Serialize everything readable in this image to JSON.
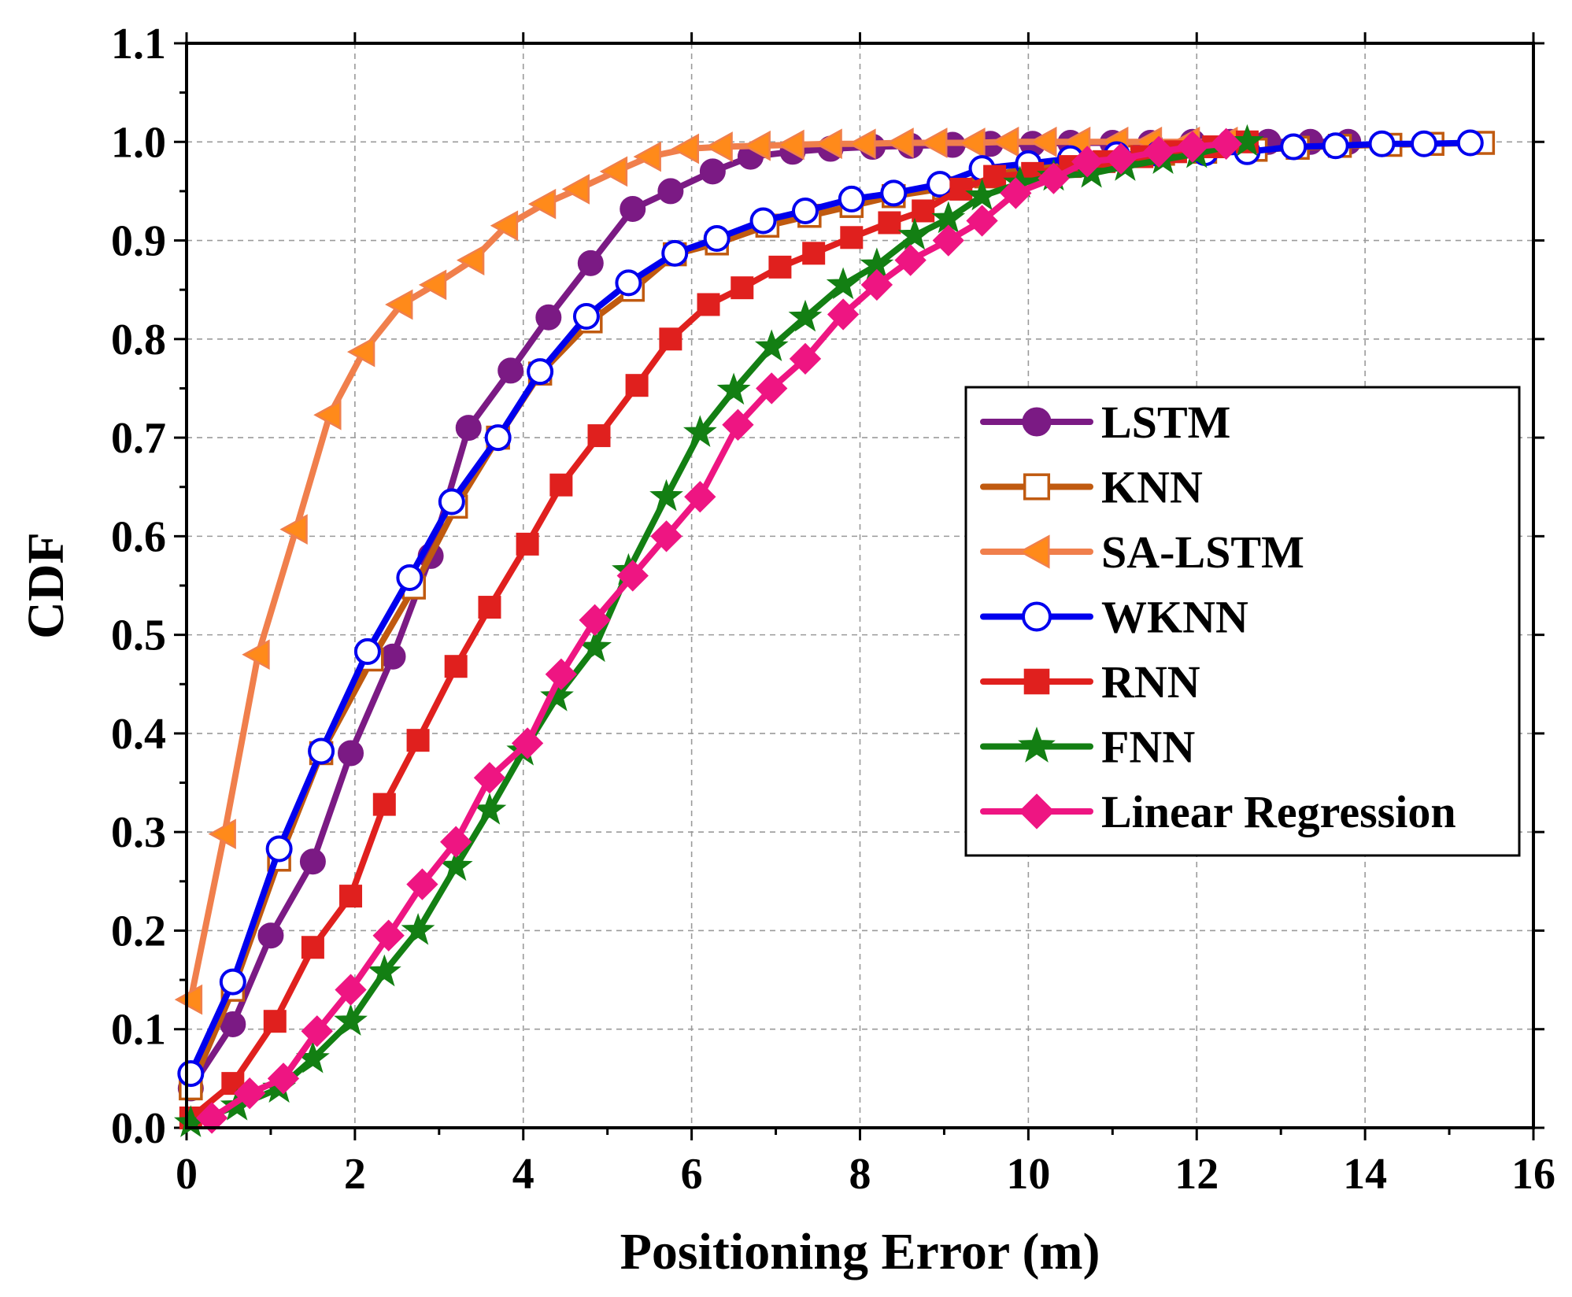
{
  "chart_data": {
    "type": "line",
    "xlabel": "Positioning Error (m)",
    "ylabel": "CDF",
    "xlim": [
      0,
      16
    ],
    "ylim": [
      0,
      1.1
    ],
    "xticks": [
      "0",
      "2",
      "4",
      "6",
      "8",
      "10",
      "12",
      "14",
      "16"
    ],
    "yticks": [
      "0.0",
      "0.1",
      "0.2",
      "0.3",
      "0.4",
      "0.5",
      "0.6",
      "0.7",
      "0.8",
      "0.9",
      "1.0",
      "1.1"
    ],
    "grid": true,
    "legend_position": "center-right",
    "series": [
      {
        "name": "LSTM",
        "color": "#7b1a84",
        "marker": "circle-filled",
        "x": [
          0.05,
          0.55,
          1.0,
          1.5,
          1.95,
          2.45,
          2.9,
          3.35,
          3.85,
          4.3,
          4.8,
          5.3,
          5.75,
          6.25,
          6.7,
          7.2,
          7.65,
          8.15,
          8.6,
          9.1,
          9.55,
          10.05,
          10.5,
          11.0,
          11.45,
          11.95,
          12.4,
          12.85,
          13.35,
          13.8
        ],
        "y": [
          0.04,
          0.105,
          0.195,
          0.27,
          0.38,
          0.478,
          0.58,
          0.71,
          0.768,
          0.822,
          0.877,
          0.932,
          0.95,
          0.97,
          0.985,
          0.99,
          0.993,
          0.995,
          0.996,
          0.997,
          0.998,
          0.998,
          0.999,
          0.999,
          0.999,
          1.0,
          1.0,
          1.0,
          1.0,
          1.0
        ]
      },
      {
        "name": "KNN",
        "color": "#c05a10",
        "marker": "square-open",
        "x": [
          0.05,
          0.55,
          1.1,
          1.6,
          2.2,
          2.7,
          3.2,
          3.7,
          4.2,
          4.8,
          5.3,
          5.8,
          6.3,
          6.9,
          7.4,
          7.9,
          8.4,
          9.0,
          9.5,
          10.0,
          10.6,
          11.1,
          11.6,
          12.1,
          12.7,
          13.2,
          13.7,
          14.3,
          14.8,
          15.4
        ],
        "y": [
          0.04,
          0.14,
          0.272,
          0.38,
          0.475,
          0.548,
          0.63,
          0.7,
          0.765,
          0.818,
          0.85,
          0.886,
          0.897,
          0.915,
          0.925,
          0.935,
          0.945,
          0.953,
          0.965,
          0.973,
          0.98,
          0.985,
          0.988,
          0.99,
          0.992,
          0.994,
          0.996,
          0.997,
          0.998,
          0.999
        ]
      },
      {
        "name": "SA-LSTM",
        "color": "#f07f4c",
        "marker": "triangle-left",
        "x": [
          0.05,
          0.45,
          0.85,
          1.3,
          1.7,
          2.1,
          2.55,
          2.95,
          3.4,
          3.8,
          4.25,
          4.65,
          5.1,
          5.5,
          5.95,
          6.35,
          6.8,
          7.2,
          7.65,
          8.05,
          8.5,
          8.9,
          9.35,
          9.75,
          10.2,
          10.6,
          11.05,
          11.45,
          11.9,
          12.35
        ],
        "y": [
          0.13,
          0.298,
          0.48,
          0.607,
          0.723,
          0.787,
          0.835,
          0.855,
          0.88,
          0.915,
          0.937,
          0.952,
          0.97,
          0.985,
          0.993,
          0.995,
          0.996,
          0.997,
          0.998,
          0.998,
          0.999,
          0.999,
          0.999,
          1.0,
          1.0,
          1.0,
          1.0,
          1.0,
          1.0,
          1.0
        ]
      },
      {
        "name": "WKNN",
        "color": "#0000ee",
        "marker": "circle-open",
        "x": [
          0.05,
          0.55,
          1.1,
          1.6,
          2.15,
          2.65,
          3.15,
          3.7,
          4.2,
          4.75,
          5.25,
          5.8,
          6.3,
          6.85,
          7.35,
          7.9,
          8.4,
          8.95,
          9.45,
          10.0,
          10.5,
          11.05,
          11.55,
          12.1,
          12.6,
          13.15,
          13.65,
          14.2,
          14.7,
          15.25
        ],
        "y": [
          0.055,
          0.148,
          0.283,
          0.382,
          0.483,
          0.558,
          0.635,
          0.7,
          0.767,
          0.823,
          0.857,
          0.887,
          0.902,
          0.92,
          0.93,
          0.942,
          0.948,
          0.957,
          0.973,
          0.978,
          0.983,
          0.987,
          0.988,
          0.989,
          0.99,
          0.995,
          0.996,
          0.998,
          0.998,
          0.999
        ]
      },
      {
        "name": "RNN",
        "color": "#e0201e",
        "marker": "square-filled",
        "x": [
          0.05,
          0.55,
          1.05,
          1.5,
          1.95,
          2.35,
          2.75,
          3.2,
          3.6,
          4.05,
          4.45,
          4.9,
          5.35,
          5.75,
          6.2,
          6.6,
          7.05,
          7.45,
          7.9,
          8.35,
          8.75,
          9.2,
          9.6,
          10.05,
          10.5,
          10.9,
          11.35,
          11.75,
          12.2,
          12.6
        ],
        "y": [
          0.01,
          0.045,
          0.108,
          0.183,
          0.235,
          0.328,
          0.393,
          0.468,
          0.528,
          0.592,
          0.652,
          0.702,
          0.753,
          0.8,
          0.835,
          0.852,
          0.873,
          0.887,
          0.903,
          0.918,
          0.93,
          0.952,
          0.965,
          0.968,
          0.975,
          0.98,
          0.985,
          0.99,
          0.995,
          1.0
        ]
      },
      {
        "name": "FNN",
        "color": "#137f13",
        "marker": "star",
        "x": [
          0.05,
          0.6,
          1.1,
          1.5,
          1.95,
          2.35,
          2.75,
          3.2,
          3.6,
          4.0,
          4.4,
          4.85,
          5.25,
          5.7,
          6.1,
          6.5,
          6.95,
          7.35,
          7.8,
          8.2,
          8.65,
          9.05,
          9.45,
          9.9,
          10.3,
          10.75,
          11.15,
          11.6,
          12.0,
          12.6
        ],
        "y": [
          0.005,
          0.022,
          0.04,
          0.07,
          0.108,
          0.158,
          0.2,
          0.265,
          0.322,
          0.382,
          0.437,
          0.487,
          0.565,
          0.64,
          0.705,
          0.748,
          0.792,
          0.822,
          0.855,
          0.875,
          0.905,
          0.922,
          0.945,
          0.958,
          0.965,
          0.968,
          0.975,
          0.982,
          0.988,
          1.0
        ]
      },
      {
        "name": "Linear Regression",
        "color": "#ee1582",
        "marker": "diamond",
        "x": [
          0.3,
          0.75,
          1.15,
          1.55,
          1.95,
          2.4,
          2.8,
          3.2,
          3.6,
          4.05,
          4.45,
          4.85,
          5.3,
          5.7,
          6.1,
          6.55,
          6.95,
          7.35,
          7.8,
          8.2,
          8.6,
          9.05,
          9.45,
          9.85,
          10.3,
          10.7,
          11.1,
          11.55,
          11.95,
          12.35
        ],
        "y": [
          0.01,
          0.035,
          0.05,
          0.098,
          0.14,
          0.195,
          0.247,
          0.29,
          0.355,
          0.39,
          0.46,
          0.515,
          0.56,
          0.6,
          0.64,
          0.713,
          0.75,
          0.78,
          0.825,
          0.855,
          0.88,
          0.9,
          0.92,
          0.948,
          0.963,
          0.98,
          0.983,
          0.99,
          0.995,
          0.998
        ]
      }
    ]
  }
}
